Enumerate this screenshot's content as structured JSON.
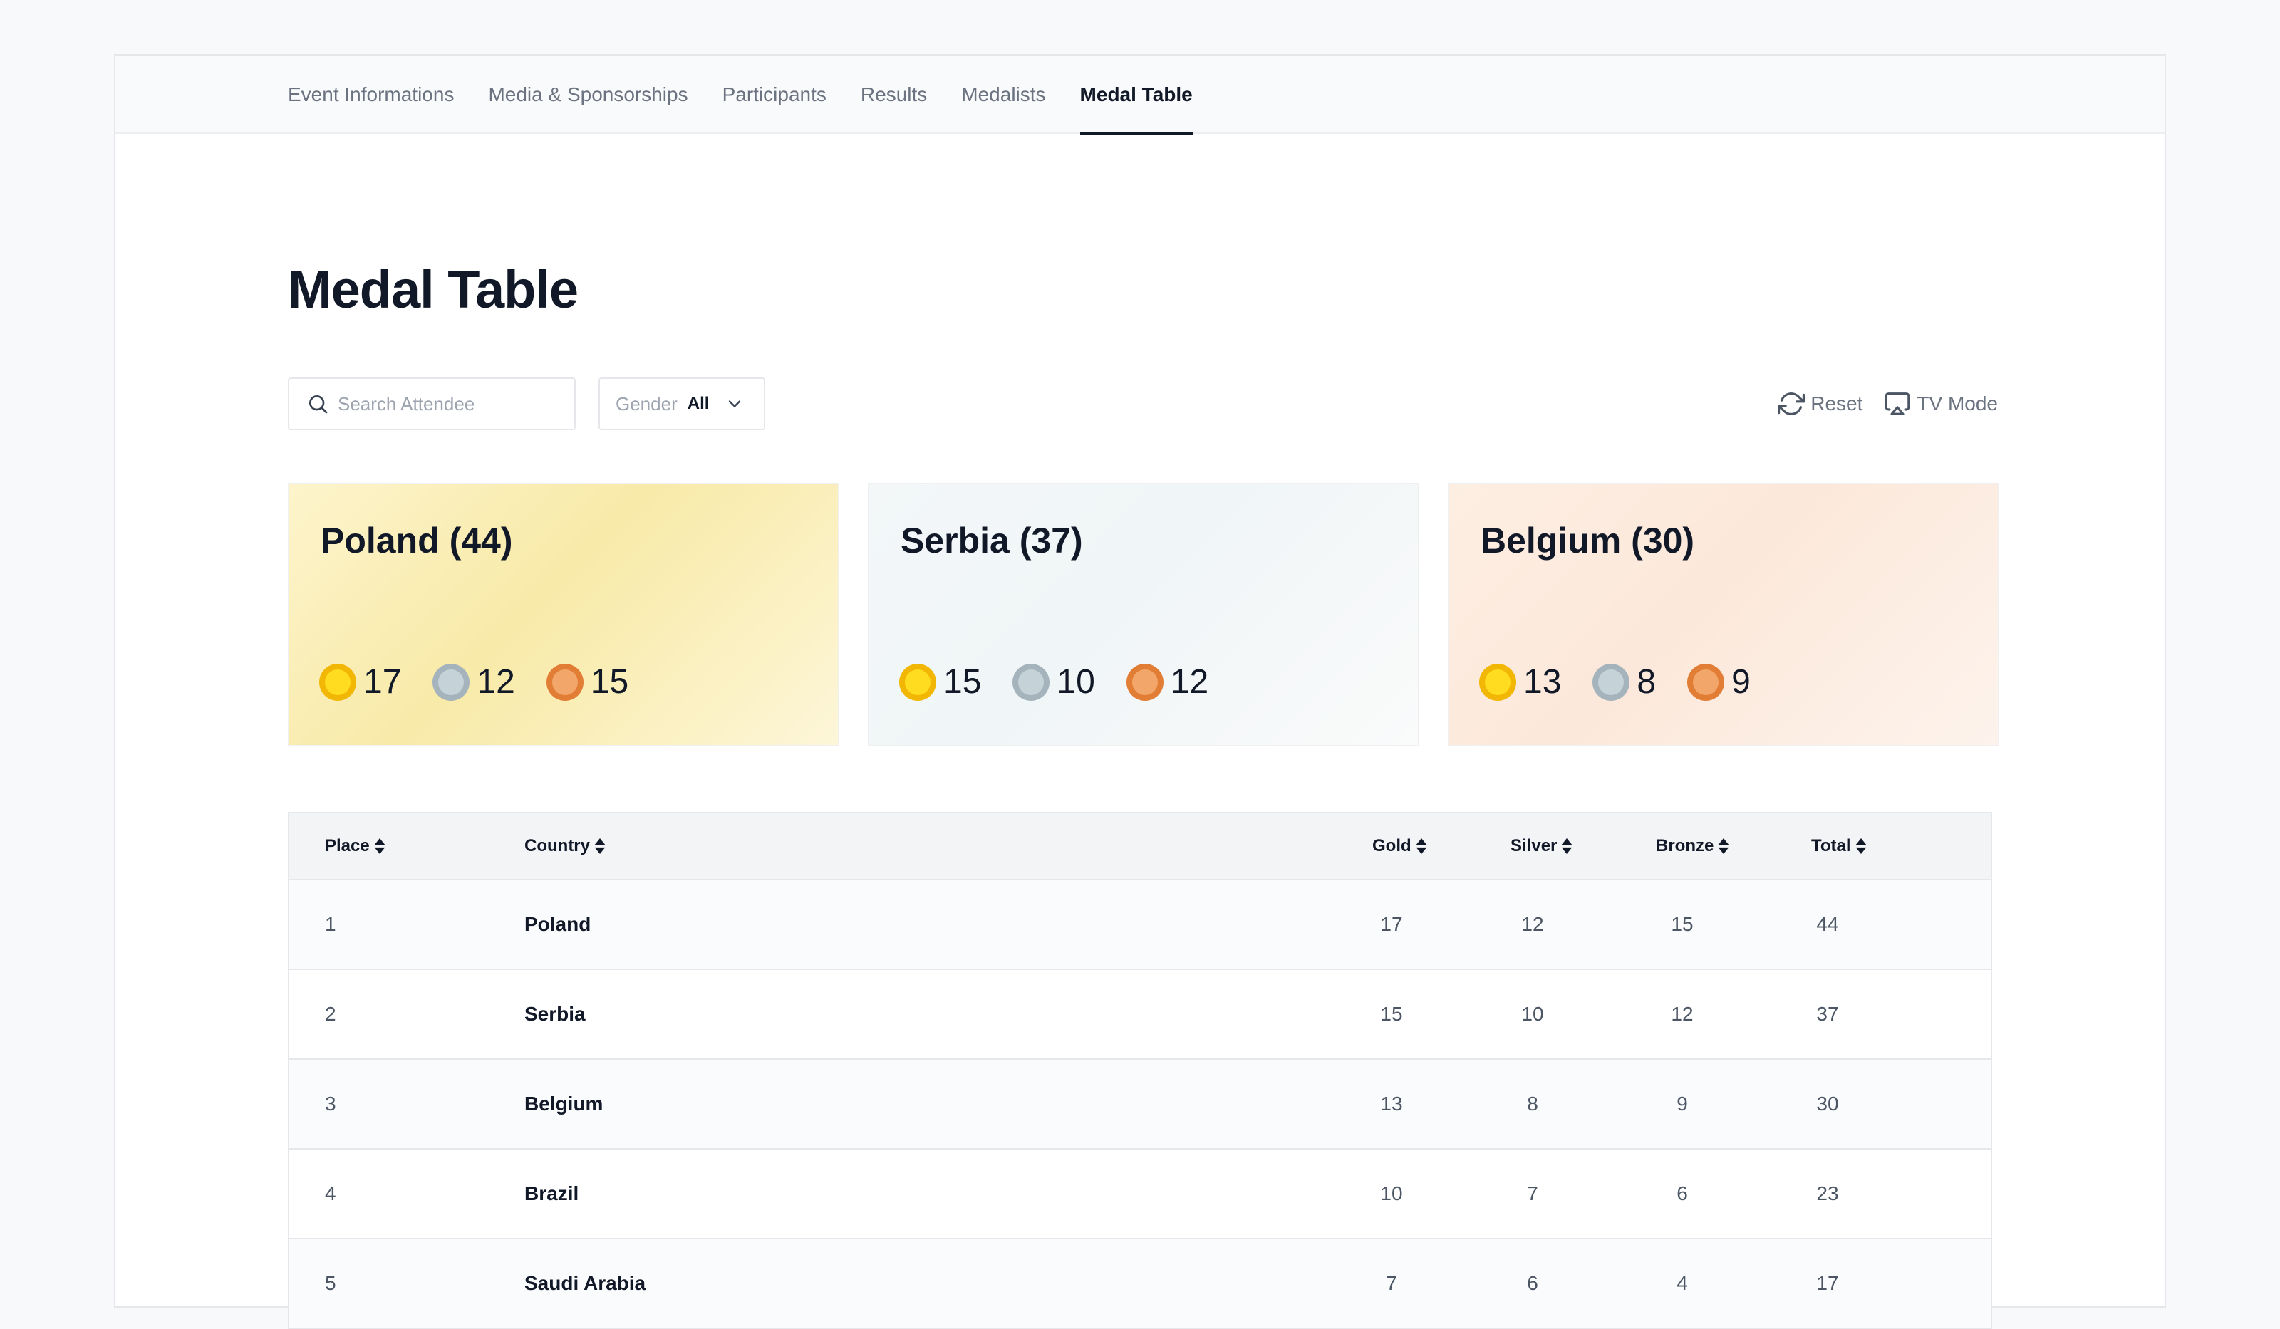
{
  "tabs": [
    {
      "label": "Event Informations",
      "active": false
    },
    {
      "label": "Media & Sponsorships",
      "active": false
    },
    {
      "label": "Participants",
      "active": false
    },
    {
      "label": "Results",
      "active": false
    },
    {
      "label": "Medalists",
      "active": false
    },
    {
      "label": "Medal Table",
      "active": true
    }
  ],
  "page": {
    "title": "Medal Table"
  },
  "filters": {
    "search_placeholder": "Search Attendee",
    "search_value": "",
    "gender_label": "Gender",
    "gender_value": "All"
  },
  "actions": {
    "reset_label": "Reset",
    "tv_mode_label": "TV Mode"
  },
  "cards": [
    {
      "title": "Poland (44)",
      "gold": "17",
      "silver": "12",
      "bronze": "15"
    },
    {
      "title": "Serbia (37)",
      "gold": "15",
      "silver": "10",
      "bronze": "12"
    },
    {
      "title": "Belgium (30)",
      "gold": "13",
      "silver": "8",
      "bronze": "9"
    }
  ],
  "table": {
    "headers": {
      "place": "Place",
      "country": "Country",
      "gold": "Gold",
      "silver": "Silver",
      "bronze": "Bronze",
      "total": "Total"
    },
    "rows": [
      {
        "place": "1",
        "country": "Poland",
        "gold": "17",
        "silver": "12",
        "bronze": "15",
        "total": "44"
      },
      {
        "place": "2",
        "country": "Serbia",
        "gold": "15",
        "silver": "10",
        "bronze": "12",
        "total": "37"
      },
      {
        "place": "3",
        "country": "Belgium",
        "gold": "13",
        "silver": "8",
        "bronze": "9",
        "total": "30"
      },
      {
        "place": "4",
        "country": "Brazil",
        "gold": "10",
        "silver": "7",
        "bronze": "6",
        "total": "23"
      },
      {
        "place": "5",
        "country": "Saudi Arabia",
        "gold": "7",
        "silver": "6",
        "bronze": "4",
        "total": "17"
      }
    ]
  },
  "colors": {
    "gold_medal": "#ffdc1f",
    "silver_medal": "#c5d2d8",
    "bronze_medal": "#f2a66a",
    "text_primary": "#111827",
    "text_muted": "#6b7280"
  }
}
